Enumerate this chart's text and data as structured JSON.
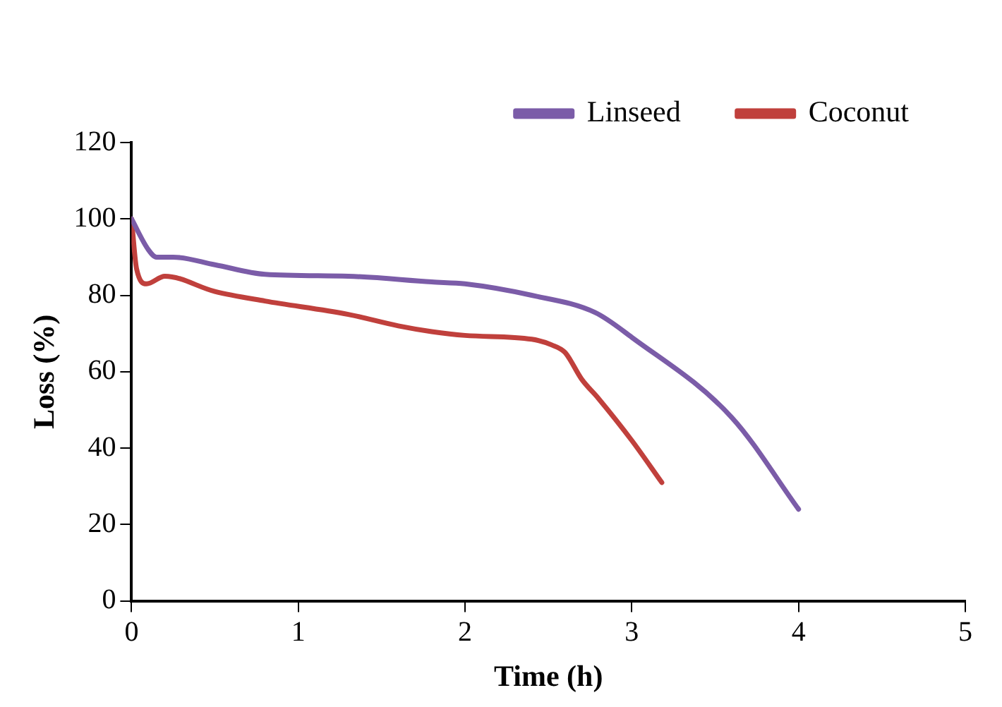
{
  "chart_data": {
    "type": "line",
    "xlabel": "Time (h)",
    "ylabel": "Loss (%)",
    "xlim": [
      0,
      5
    ],
    "xticks": [
      0,
      1,
      2,
      3,
      4,
      5
    ],
    "ylim": [
      0,
      120
    ],
    "yticks": [
      0,
      20,
      40,
      60,
      80,
      100,
      120
    ],
    "grid": false,
    "legend": "top right",
    "marker": "none",
    "line_style": "solid",
    "series": [
      {
        "name": "Linseed",
        "color": "#7b5ca8",
        "x": [
          0,
          0.1,
          0.15,
          0.25,
          0.5,
          0.8,
          1.3,
          1.8,
          2.0,
          2.4,
          2.78,
          3.0,
          3.6,
          4.0
        ],
        "values": [
          100,
          92,
          90,
          90,
          88,
          85.5,
          85,
          83.5,
          83,
          80,
          75.5,
          69,
          48,
          24
        ]
      },
      {
        "name": "Coconut",
        "color": "#c0403c",
        "x": [
          0,
          0.03,
          0.09,
          0.2,
          0.5,
          0.8,
          1.3,
          1.6,
          1.8,
          2.0,
          2.4,
          2.52,
          2.6,
          2.7,
          2.8,
          3.0,
          3.18
        ],
        "values": [
          100,
          87,
          83,
          85,
          81,
          78.5,
          75,
          72,
          70.5,
          69.5,
          68.5,
          67,
          65,
          58,
          53,
          42,
          31
        ]
      }
    ]
  }
}
